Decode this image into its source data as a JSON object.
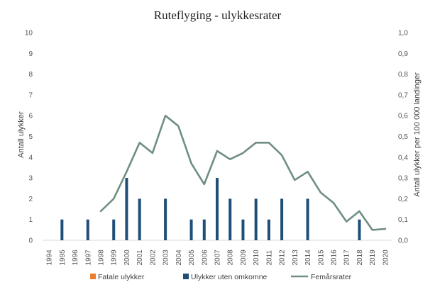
{
  "chart_data": {
    "type": "bar",
    "title": "Ruteflyging - ulykkesrater",
    "xlabel": "",
    "ylabel": "Antall ulykker",
    "y2label": "Antall ulykker per 100 000 landinger",
    "ylim": [
      0,
      10
    ],
    "y2lim": [
      0,
      1.0
    ],
    "yticks": [
      "0",
      "1",
      "2",
      "3",
      "4",
      "5",
      "6",
      "7",
      "8",
      "9",
      "10"
    ],
    "y2ticks": [
      "0,0",
      "0,1",
      "0,2",
      "0,3",
      "0,4",
      "0,5",
      "0,6",
      "0,7",
      "0,8",
      "0,9",
      "1,0"
    ],
    "grid": false,
    "legend_position": "bottom",
    "categories": [
      "1994",
      "1995",
      "1996",
      "1997",
      "1998",
      "1999",
      "2000",
      "2001",
      "2002",
      "2003",
      "2004",
      "2005",
      "2006",
      "2007",
      "2008",
      "2009",
      "2010",
      "2011",
      "2012",
      "2013",
      "2014",
      "2015",
      "2016",
      "2017",
      "2018",
      "2019",
      "2020"
    ],
    "series": [
      {
        "name": "Fatale ulykker",
        "type": "bar",
        "axis": "left",
        "color": "#ED7D31",
        "values": [
          0,
          0,
          0,
          0,
          0,
          0,
          0,
          0,
          0,
          0,
          0,
          0,
          0,
          0,
          0,
          0,
          0,
          0,
          0,
          0,
          0,
          0,
          0,
          0,
          0,
          0,
          0
        ]
      },
      {
        "name": "Ulykker uten omkomne",
        "type": "bar",
        "axis": "left",
        "color": "#1F4E79",
        "values": [
          0,
          1,
          0,
          1,
          0,
          1,
          3,
          2,
          0,
          2,
          0,
          1,
          1,
          3,
          2,
          1,
          2,
          1,
          2,
          0,
          2,
          0,
          0,
          0,
          1,
          0,
          0
        ]
      },
      {
        "name": "Femårsrater",
        "type": "line",
        "axis": "right",
        "color": "#6F8F80",
        "values": [
          null,
          null,
          null,
          null,
          0.14,
          0.2,
          0.33,
          0.47,
          0.42,
          0.6,
          0.55,
          0.37,
          0.27,
          0.43,
          0.39,
          0.42,
          0.47,
          0.47,
          0.41,
          0.29,
          0.33,
          0.23,
          0.18,
          0.09,
          0.14,
          0.05,
          0.055
        ]
      }
    ]
  }
}
